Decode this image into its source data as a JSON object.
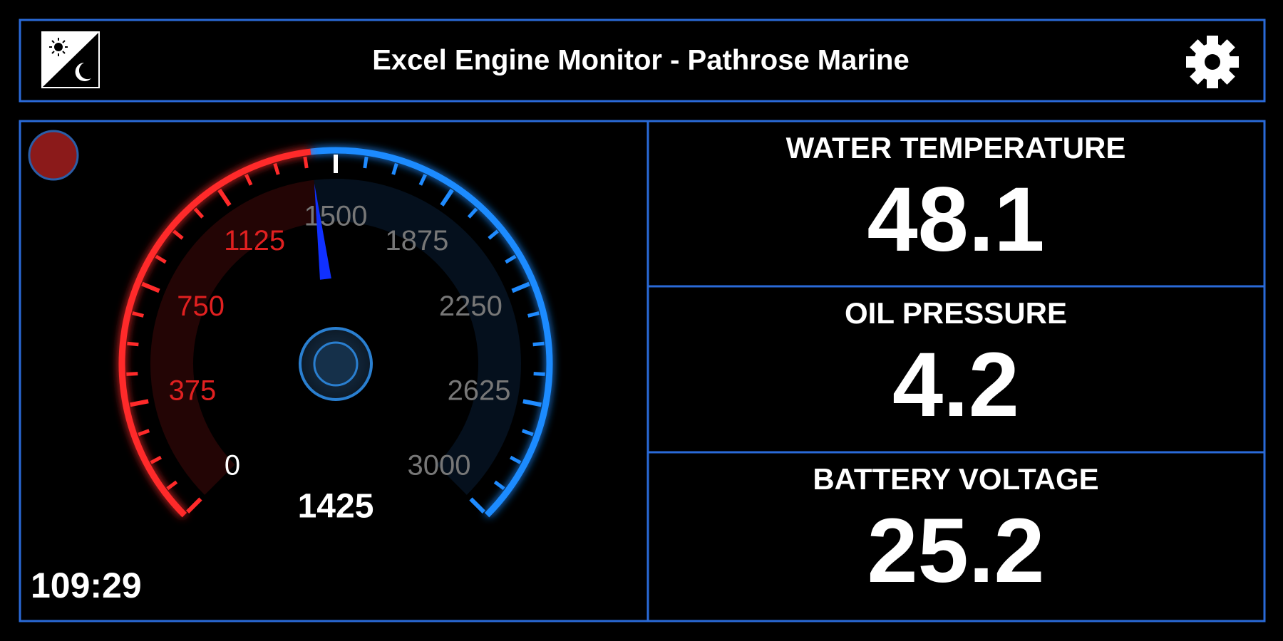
{
  "header": {
    "title": "Excel Engine Monitor - Pathrose Marine"
  },
  "gauge": {
    "range": [
      0,
      3000
    ],
    "ticks": [
      0,
      375,
      750,
      1125,
      1500,
      1875,
      2250,
      2625,
      3000
    ],
    "value": 1425,
    "timer": "109:29"
  },
  "readouts": [
    {
      "label": "WATER TEMPERATURE",
      "value": 48.1
    },
    {
      "label": "OIL PRESSURE",
      "value": 4.2
    },
    {
      "label": "BATTERY VOLTAGE",
      "value": 25.2
    }
  ]
}
